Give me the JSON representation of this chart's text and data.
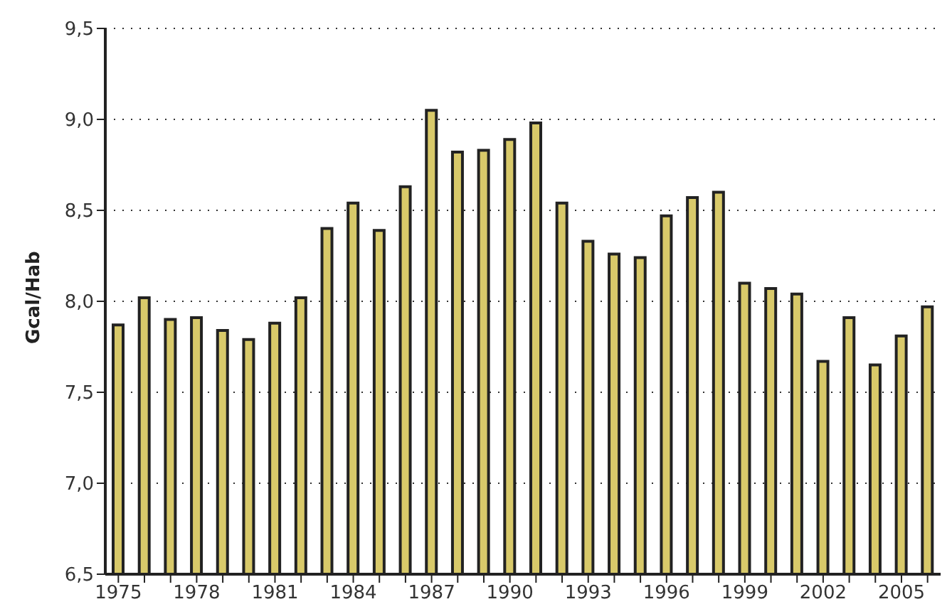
{
  "chart_data": {
    "type": "bar",
    "ylabel": "Gcal/Hab",
    "categories": [
      "1975",
      null,
      null,
      "1978",
      null,
      null,
      "1981",
      null,
      null,
      "1984",
      null,
      null,
      "1987",
      null,
      null,
      "1990",
      null,
      null,
      "1993",
      null,
      null,
      "1996",
      null,
      null,
      "1999",
      null,
      null,
      "2002",
      null,
      null,
      "2005",
      null
    ],
    "series": [
      {
        "color": "#d8c96a",
        "values": [
          7.87,
          8.02,
          7.9,
          7.91,
          7.84,
          7.79,
          7.88,
          8.02,
          8.4,
          8.54,
          8.39,
          8.63,
          9.05,
          8.82,
          8.83,
          8.89,
          8.98,
          8.54,
          8.33,
          8.26,
          8.24,
          8.47,
          8.57,
          8.6,
          8.1,
          8.07,
          8.04,
          7.67,
          7.91,
          7.65,
          7.81,
          7.97
        ]
      }
    ],
    "ylim": [
      6.5,
      9.5
    ],
    "yticks": [
      {
        "value": 6.5,
        "label": "6,5"
      },
      {
        "value": 7,
        "label": "7,0"
      },
      {
        "value": 7.5,
        "label": "7,5"
      },
      {
        "value": 8,
        "label": "8,0"
      },
      {
        "value": 8.5,
        "label": "8,5"
      },
      {
        "value": 9,
        "label": "9,0"
      },
      {
        "value": 9.5,
        "label": "9,5"
      }
    ],
    "grid": "y"
  }
}
